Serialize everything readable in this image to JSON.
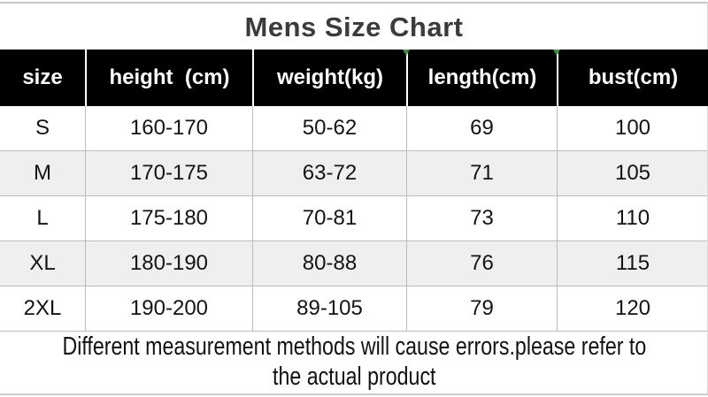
{
  "title": "Mens Size Chart",
  "chart_data": {
    "type": "table",
    "title": "Mens Size Chart",
    "columns": [
      "size",
      "height  (cm)",
      "weight(kg)",
      "length(cm)",
      "bust(cm)"
    ],
    "rows": [
      [
        "S",
        "160-170",
        "50-62",
        "69",
        "100"
      ],
      [
        "M",
        "170-175",
        "63-72",
        "71",
        "105"
      ],
      [
        "L",
        "175-180",
        "70-81",
        "73",
        "110"
      ],
      [
        "XL",
        "180-190",
        "80-88",
        "76",
        "115"
      ],
      [
        "2XL",
        "190-200",
        "89-105",
        "79",
        "120"
      ]
    ],
    "note": "Different measurement methods will cause errors.please refer to the actual product"
  },
  "footer": {
    "line1": "Different measurement methods will cause errors.please refer to",
    "line2": "the actual product"
  },
  "colors": {
    "header_bg": "#000000",
    "header_text": "#ffffff",
    "row_alt_bg": "#efefef",
    "grid_line": "#bcbcbc",
    "border_line": "#cdcdcd",
    "marker_green": "#3f8f3f",
    "title_text": "#3b3b3b",
    "body_text": "#141414"
  }
}
